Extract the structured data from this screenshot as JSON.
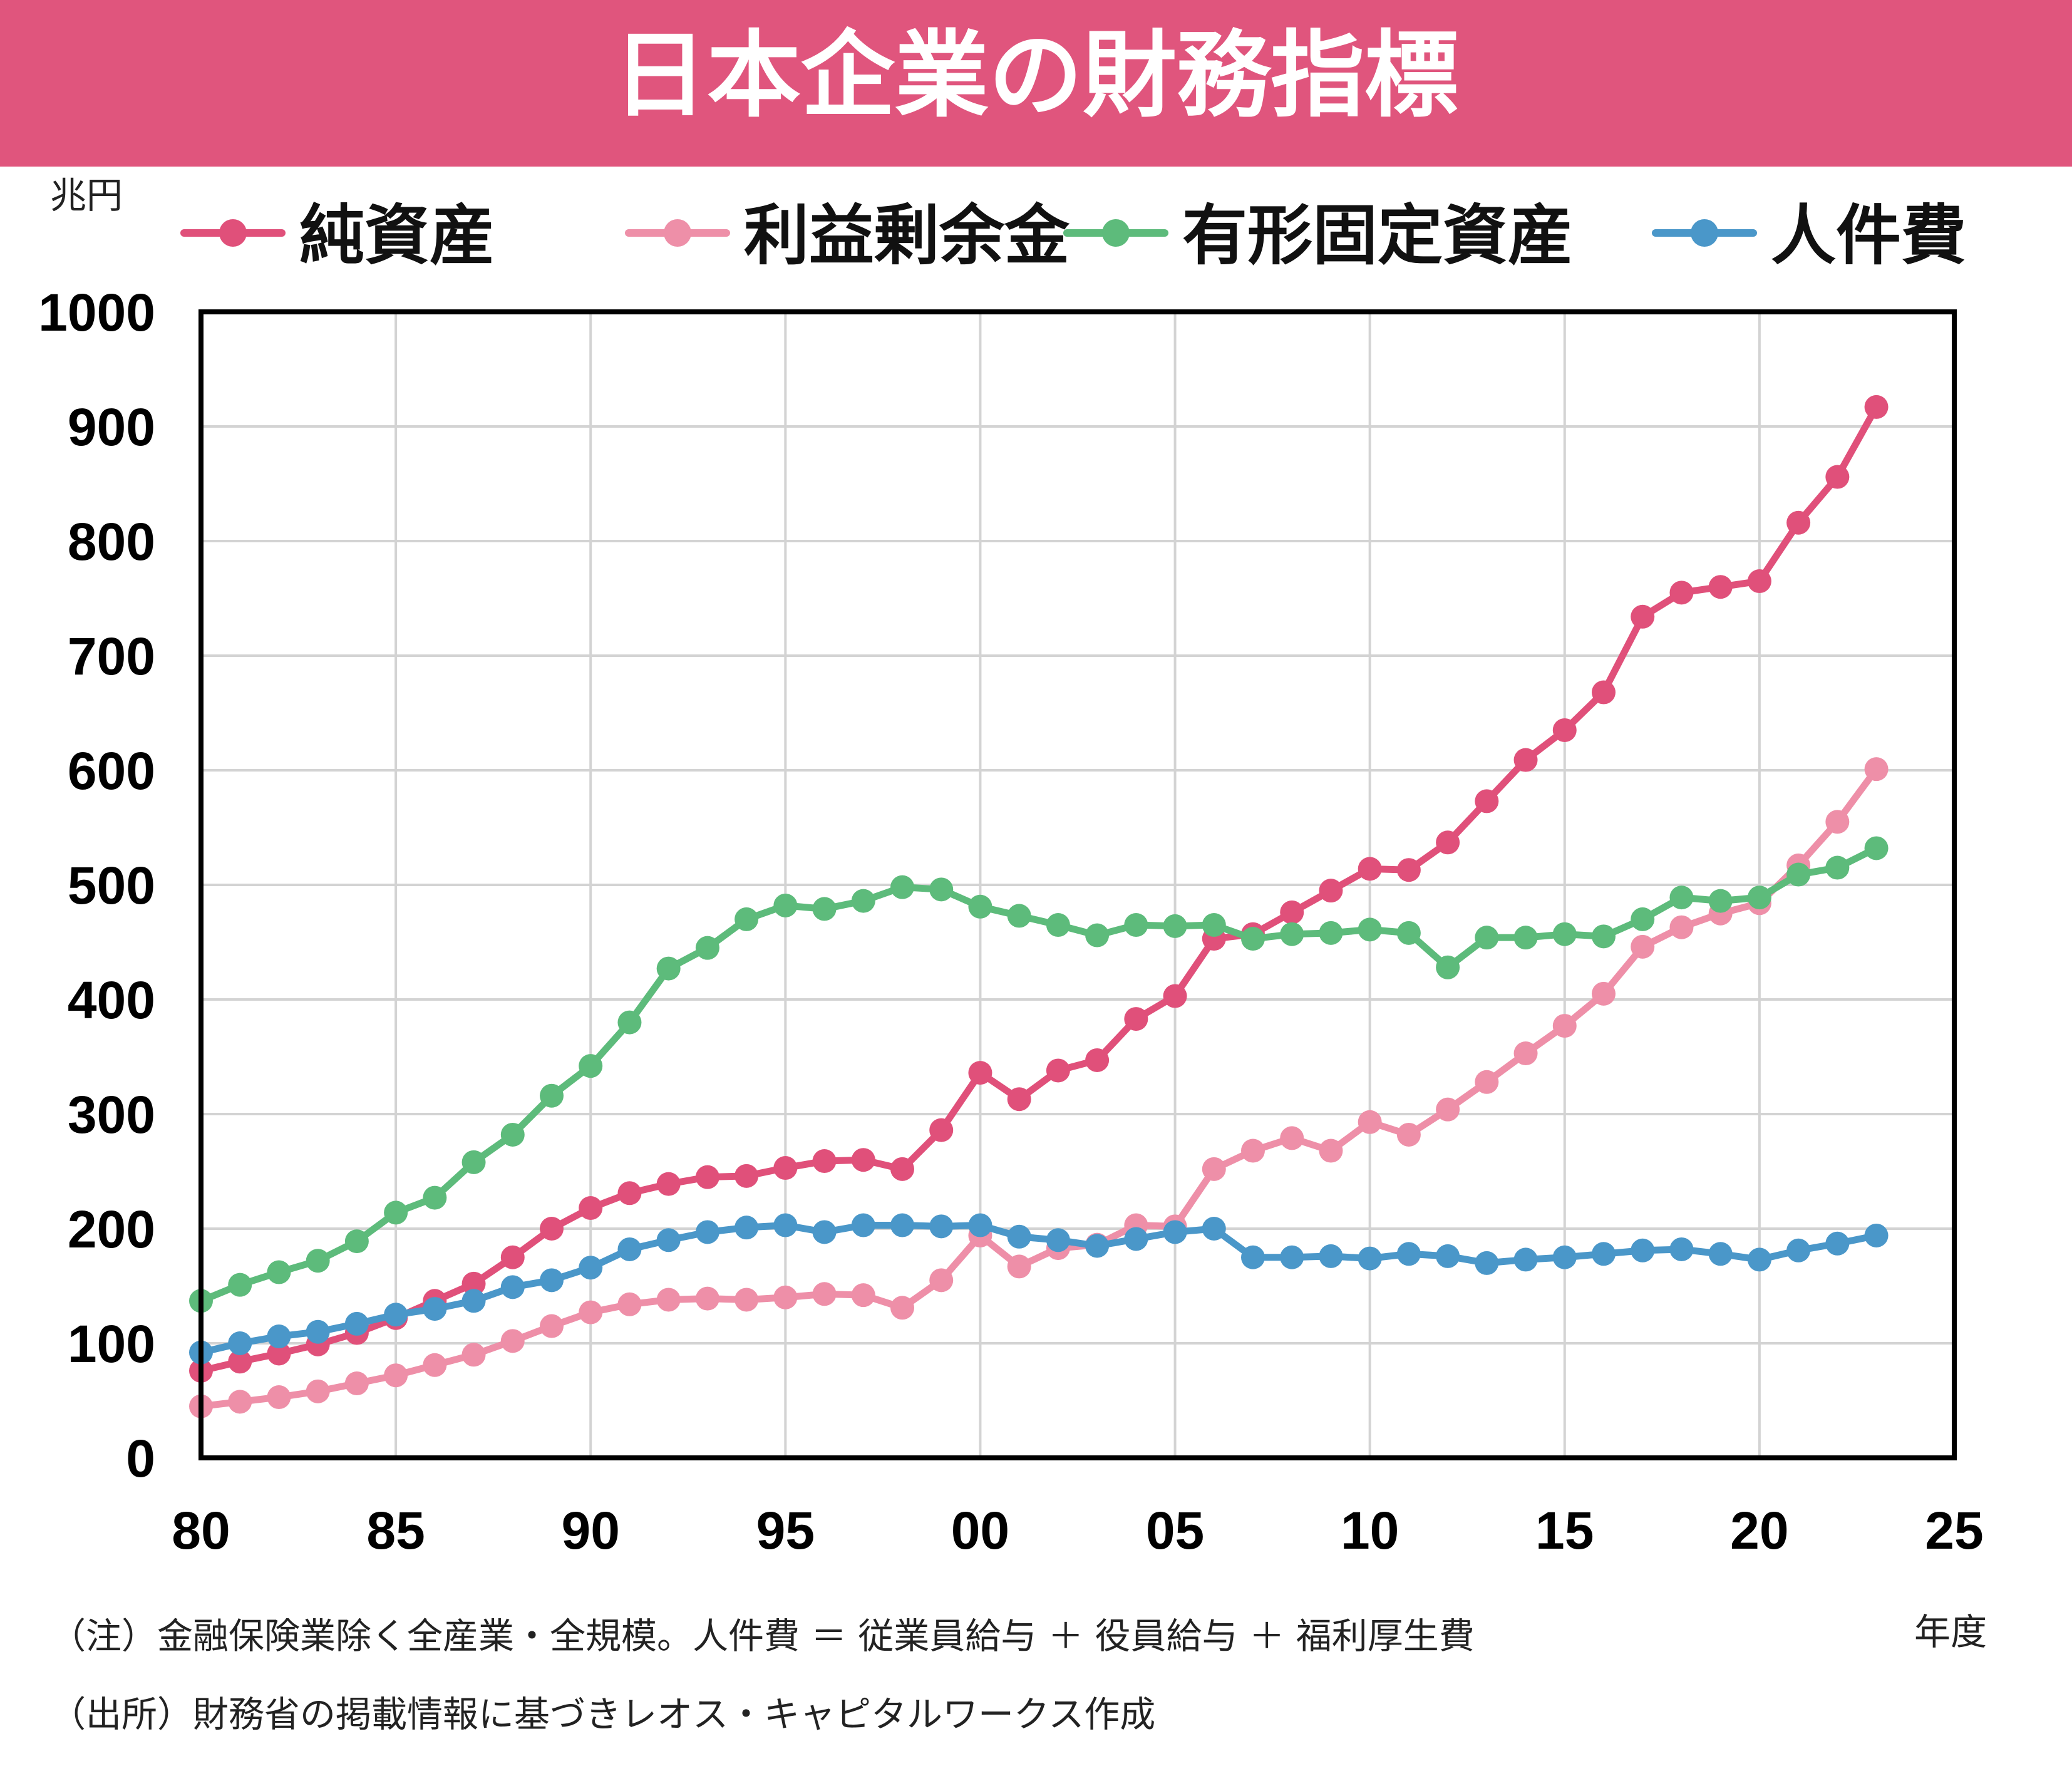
{
  "header": {
    "title": "日本企業の財務指標"
  },
  "colors": {
    "header_bg": "#E0557D",
    "title_text": "#FFFFFF",
    "net_assets": "#E0507A",
    "retained_earnings": "#EE8FA8",
    "fixed_assets": "#5DBB7B",
    "personnel": "#4A97C9",
    "grid": "#D3D3D3",
    "axis": "#000000"
  },
  "notes": {
    "note": "（注）金融保険業除く全産業・全規模。人件費 ＝ 従業員給与 ＋ 役員給与 ＋ 福利厚生費",
    "source": "（出所）財務省の掲載情報に基づきレオス・キャピタルワークス作成"
  },
  "chart_data": {
    "type": "line",
    "title": "日本企業の財務指標",
    "ylabel": "兆円",
    "xlabel": "年度",
    "ylim": [
      0,
      1000
    ],
    "xlim": [
      1980,
      2025
    ],
    "grid": true,
    "legend_position": "top",
    "y_ticks": [
      0,
      100,
      200,
      300,
      400,
      500,
      600,
      700,
      800,
      900,
      1000
    ],
    "x_ticks": [
      {
        "value": 1980,
        "label": "80"
      },
      {
        "value": 1985,
        "label": "85"
      },
      {
        "value": 1990,
        "label": "90"
      },
      {
        "value": 1995,
        "label": "95"
      },
      {
        "value": 2000,
        "label": "00"
      },
      {
        "value": 2005,
        "label": "05"
      },
      {
        "value": 2010,
        "label": "10"
      },
      {
        "value": 2015,
        "label": "15"
      },
      {
        "value": 2020,
        "label": "20"
      },
      {
        "value": 2025,
        "label": "25"
      }
    ],
    "x": [
      1980,
      1981,
      1982,
      1983,
      1984,
      1985,
      1986,
      1987,
      1988,
      1989,
      1990,
      1991,
      1992,
      1993,
      1994,
      1995,
      1996,
      1997,
      1998,
      1999,
      2000,
      2001,
      2002,
      2003,
      2004,
      2005,
      2006,
      2007,
      2008,
      2009,
      2010,
      2011,
      2012,
      2013,
      2014,
      2015,
      2016,
      2017,
      2018,
      2019,
      2020,
      2021,
      2022,
      2023
    ],
    "series": [
      {
        "name": "純資産",
        "key": "net_assets",
        "values": [
          76,
          84,
          91,
          99,
          109,
          122,
          137,
          152,
          175,
          200,
          218,
          231,
          239,
          245,
          246,
          253,
          259,
          260,
          252,
          286,
          336,
          313,
          338,
          347,
          383,
          403,
          453,
          457,
          476,
          495,
          514,
          513,
          537,
          573,
          609,
          635,
          668,
          734,
          755,
          760,
          765,
          816,
          856,
          917
        ]
      },
      {
        "name": "利益剰余金",
        "key": "retained_earnings",
        "values": [
          45,
          49,
          53,
          58,
          65,
          72,
          81,
          90,
          102,
          115,
          127,
          134,
          138,
          139,
          138,
          140,
          143,
          142,
          131,
          155,
          194,
          167,
          183,
          186,
          203,
          202,
          252,
          268,
          279,
          268,
          293,
          282,
          304,
          328,
          353,
          377,
          405,
          446,
          463,
          475,
          484,
          517,
          555,
          601
        ]
      },
      {
        "name": "有形固定資産",
        "key": "fixed_assets",
        "values": [
          137,
          151,
          162,
          172,
          189,
          214,
          227,
          258,
          282,
          316,
          342,
          380,
          427,
          445,
          470,
          482,
          479,
          486,
          498,
          496,
          481,
          473,
          465,
          456,
          465,
          464,
          465,
          453,
          457,
          458,
          461,
          458,
          428,
          454,
          454,
          457,
          455,
          470,
          489,
          486,
          489,
          509,
          515,
          532
        ]
      },
      {
        "name": "人件費",
        "key": "personnel",
        "values": [
          92,
          100,
          106,
          110,
          117,
          125,
          130,
          137,
          149,
          155,
          166,
          182,
          190,
          197,
          201,
          203,
          197,
          203,
          203,
          202,
          203,
          193,
          190,
          185,
          191,
          197,
          200,
          175,
          175,
          176,
          174,
          178,
          176,
          170,
          173,
          175,
          178,
          181,
          182,
          178,
          173,
          181,
          187,
          194
        ]
      }
    ]
  }
}
